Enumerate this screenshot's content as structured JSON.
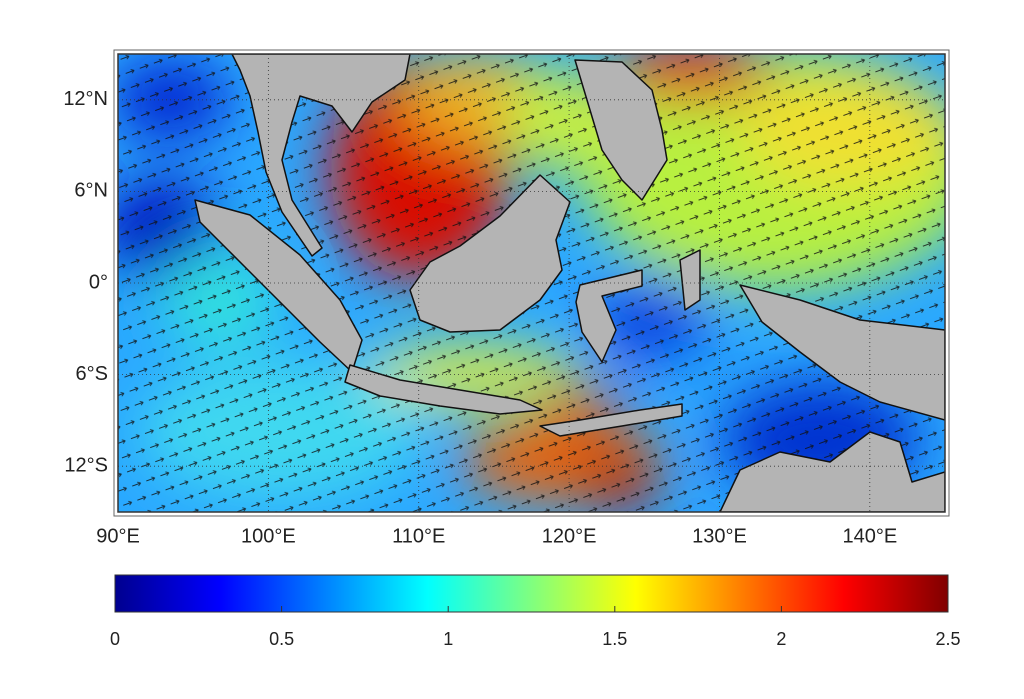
{
  "chart_data": {
    "type": "map",
    "xlim": [
      90,
      145
    ],
    "ylim": [
      -15,
      15
    ],
    "xticks": [
      {
        "value": 90,
        "label": "90°E"
      },
      {
        "value": 100,
        "label": "100°E"
      },
      {
        "value": 110,
        "label": "110°E"
      },
      {
        "value": 120,
        "label": "120°E"
      },
      {
        "value": 130,
        "label": "130°E"
      },
      {
        "value": 140,
        "label": "140°E"
      }
    ],
    "yticks": [
      {
        "value": -12,
        "label": "12°S"
      },
      {
        "value": -6,
        "label": "6°S"
      },
      {
        "value": 0,
        "label": "0°"
      },
      {
        "value": 6,
        "label": "6°N"
      },
      {
        "value": 12,
        "label": "12°N"
      }
    ],
    "grid": true,
    "colorbar": {
      "lim": [
        0,
        2.5
      ],
      "ticks": [
        0,
        0.5,
        1,
        1.5,
        2,
        2.5
      ]
    }
  }
}
